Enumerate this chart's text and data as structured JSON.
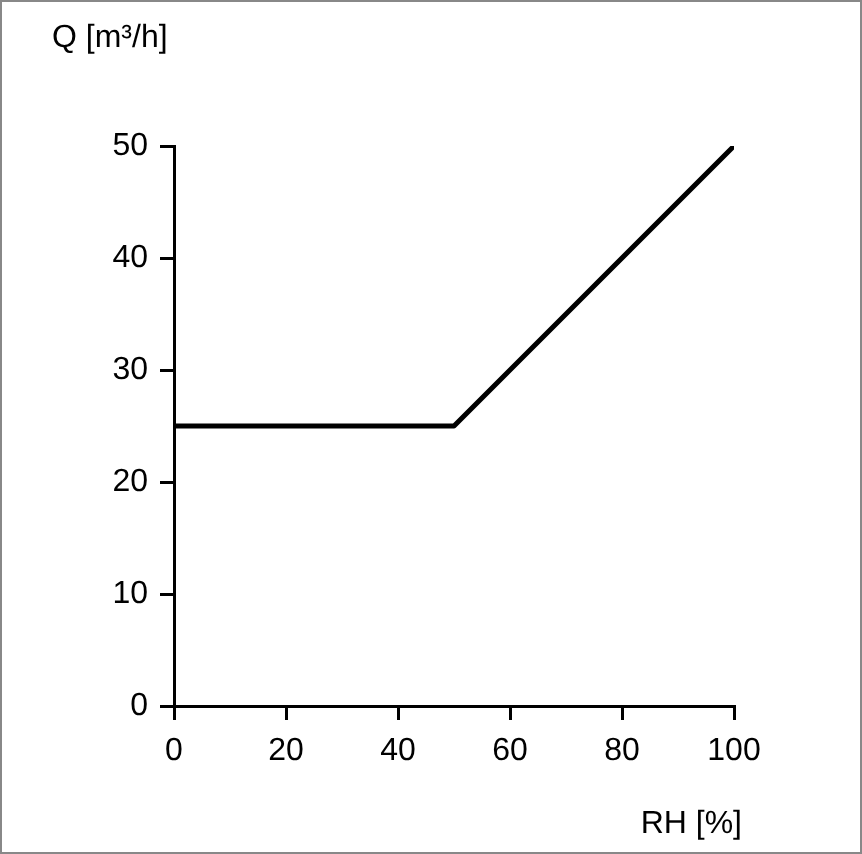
{
  "chart_data": {
    "type": "line",
    "xlabel": "RH [%]",
    "ylabel": "Q [m³/h]",
    "x": [
      0,
      50,
      100
    ],
    "series": [
      {
        "color": "#000000",
        "values": [
          25,
          25,
          50
        ]
      }
    ],
    "xlim": [
      0,
      100
    ],
    "xticks": [
      0,
      20,
      40,
      60,
      80,
      100
    ],
    "ylim": [
      0,
      50
    ],
    "yticks": [
      0,
      10,
      20,
      30,
      40,
      50
    ],
    "grid": false,
    "legend": false,
    "marker": "none",
    "line_style": "solid"
  }
}
